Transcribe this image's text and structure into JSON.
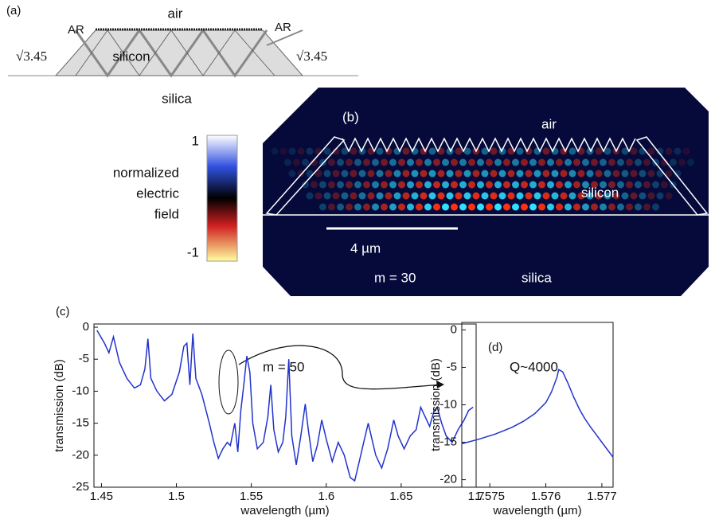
{
  "panel_a": {
    "label": "(a)",
    "air": "air",
    "silicon": "silicon",
    "silica": "silica",
    "ar_left": "AR",
    "ar_right": "AR",
    "index_left": "√3.45",
    "index_right": "√3.45"
  },
  "panel_b": {
    "label": "(b)",
    "air": "air",
    "silicon": "silicon",
    "silica": "silica",
    "scale_bar": "4 µm",
    "mode": "m = 30",
    "colorbar": {
      "title_lines": [
        "normalized",
        "electric",
        "field"
      ],
      "max_label": "1",
      "min_label": "-1"
    }
  },
  "chart_data": [
    {
      "type": "line",
      "panel_label": "(c)",
      "xlabel": "wavelength (µm)",
      "ylabel": "transmission (dB)",
      "annotation": "m = 50",
      "xlim": [
        1.445,
        1.7
      ],
      "xticks": [
        1.45,
        1.5,
        1.55,
        1.6,
        1.65,
        1.7
      ],
      "ylim": [
        -25,
        0.5
      ],
      "yticks": [
        0,
        -5,
        -10,
        -15,
        -20,
        -25
      ],
      "series": [
        {
          "color": "#2233cc",
          "x": [
            1.447,
            1.452,
            1.455,
            1.458,
            1.462,
            1.467,
            1.472,
            1.476,
            1.479,
            1.481,
            1.483,
            1.487,
            1.492,
            1.497,
            1.502,
            1.505,
            1.507,
            1.509,
            1.511,
            1.513,
            1.517,
            1.522,
            1.525,
            1.528,
            1.531,
            1.534,
            1.536,
            1.539,
            1.541,
            1.543,
            1.545,
            1.547,
            1.549,
            1.551,
            1.554,
            1.558,
            1.561,
            1.563,
            1.565,
            1.568,
            1.571,
            1.573,
            1.575,
            1.577,
            1.58,
            1.583,
            1.586,
            1.588,
            1.591,
            1.594,
            1.597,
            1.6,
            1.604,
            1.608,
            1.612,
            1.616,
            1.619,
            1.622,
            1.625,
            1.628,
            1.63,
            1.633,
            1.637,
            1.641,
            1.645,
            1.648,
            1.652,
            1.656,
            1.66,
            1.663,
            1.666,
            1.669,
            1.672,
            1.674,
            1.677,
            1.68,
            1.684,
            1.688,
            1.692,
            1.695,
            1.698
          ],
          "values": [
            -0.5,
            -2.5,
            -4,
            -1.5,
            -5.5,
            -8,
            -9.5,
            -9,
            -6.5,
            -1.8,
            -8,
            -10,
            -11.5,
            -10.5,
            -7,
            -3,
            -2.5,
            -9,
            -1,
            -8,
            -10.5,
            -15,
            -18,
            -20.5,
            -19,
            -18,
            -18.5,
            -15,
            -19.5,
            -13,
            -9,
            -4.5,
            -7,
            -15,
            -19,
            -18,
            -14,
            -9,
            -16,
            -19.5,
            -18,
            -14,
            -5,
            -17,
            -21.5,
            -17,
            -12,
            -16,
            -21,
            -18.5,
            -14.5,
            -17.5,
            -21,
            -18,
            -20,
            -23.5,
            -24,
            -21,
            -18,
            -15,
            -17,
            -20,
            -22,
            -19,
            -14.5,
            -17,
            -19,
            -17,
            -16,
            -12.5,
            -14,
            -15.5,
            -13,
            -12.5,
            -15,
            -17,
            -18,
            -16,
            -14.5,
            -13,
            -12.5
          ]
        }
      ]
    },
    {
      "type": "line",
      "panel_label": "(d)",
      "xlabel": "wavelength (µm)",
      "ylabel": "transmission (dB)",
      "annotation": "Q~4000",
      "xlim": [
        1.5745,
        1.5772
      ],
      "xticks": [
        1.575,
        1.576,
        1.577
      ],
      "ylim": [
        -21,
        1
      ],
      "yticks": [
        0,
        -5,
        -10,
        -15,
        -20
      ],
      "series": [
        {
          "color": "#2233cc",
          "x": [
            1.5745,
            1.5748,
            1.5751,
            1.5754,
            1.5756,
            1.5758,
            1.576,
            1.5761,
            1.5762,
            1.57623,
            1.5763,
            1.5764,
            1.5765,
            1.5766,
            1.5767,
            1.5768,
            1.5769,
            1.577,
            1.5771,
            1.5772
          ],
          "values": [
            -15.2,
            -14.6,
            -13.9,
            -13,
            -12.2,
            -11.2,
            -9.7,
            -8.3,
            -6.3,
            -5.3,
            -5.6,
            -7.2,
            -9,
            -10.6,
            -11.9,
            -13,
            -14,
            -15,
            -16,
            -17
          ]
        }
      ]
    }
  ]
}
